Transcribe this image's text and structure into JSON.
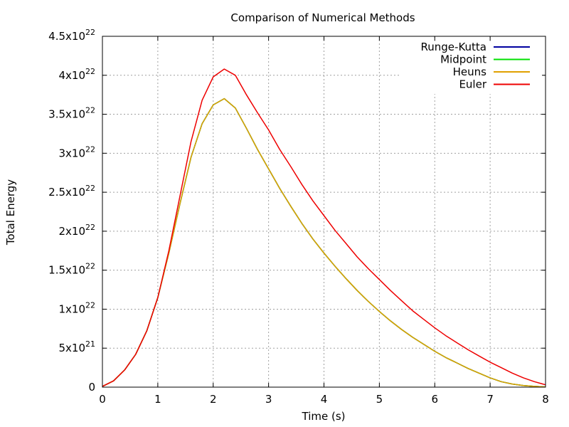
{
  "chart_data": {
    "type": "line",
    "title": "Comparison of Numerical Methods",
    "xlabel": "Time (s)",
    "ylabel": "Total Energy",
    "xlim": [
      0,
      8
    ],
    "ylim": [
      0,
      4.5e+22
    ],
    "grid": true,
    "legend_position": "top-right",
    "x_ticks": [
      {
        "value": 0,
        "label": "0"
      },
      {
        "value": 1,
        "label": "1"
      },
      {
        "value": 2,
        "label": "2"
      },
      {
        "value": 3,
        "label": "3"
      },
      {
        "value": 4,
        "label": "4"
      },
      {
        "value": 5,
        "label": "5"
      },
      {
        "value": 6,
        "label": "6"
      },
      {
        "value": 7,
        "label": "7"
      },
      {
        "value": 8,
        "label": "8"
      }
    ],
    "y_ticks": [
      {
        "value": 0,
        "mantissa": "0",
        "exp": ""
      },
      {
        "value": 5e+21,
        "mantissa": "5x10",
        "exp": "21"
      },
      {
        "value": 1e+22,
        "mantissa": "1x10",
        "exp": "22"
      },
      {
        "value": 1.5e+22,
        "mantissa": "1.5x10",
        "exp": "22"
      },
      {
        "value": 2e+22,
        "mantissa": "2x10",
        "exp": "22"
      },
      {
        "value": 2.5e+22,
        "mantissa": "2.5x10",
        "exp": "22"
      },
      {
        "value": 3e+22,
        "mantissa": "3x10",
        "exp": "22"
      },
      {
        "value": 3.5e+22,
        "mantissa": "3.5x10",
        "exp": "22"
      },
      {
        "value": 4e+22,
        "mantissa": "4x10",
        "exp": "22"
      },
      {
        "value": 4.5e+22,
        "mantissa": "4.5x10",
        "exp": "22"
      }
    ],
    "x": [
      0,
      0.2,
      0.4,
      0.6,
      0.8,
      1.0,
      1.2,
      1.4,
      1.6,
      1.8,
      2.0,
      2.2,
      2.4,
      2.6,
      2.8,
      3.0,
      3.2,
      3.4,
      3.6,
      3.8,
      4.0,
      4.2,
      4.4,
      4.6,
      4.8,
      5.0,
      5.2,
      5.4,
      5.6,
      5.8,
      6.0,
      6.2,
      6.4,
      6.6,
      6.8,
      7.0,
      7.2,
      7.4,
      7.6,
      7.8,
      8.0
    ],
    "series": [
      {
        "name": "Runge-Kutta",
        "color": "#0000a0",
        "values": [
          1e+20,
          8e+20,
          2.2e+21,
          4.2e+21,
          7.2e+21,
          1.15e+22,
          1.72e+22,
          2.35e+22,
          2.95e+22,
          3.38e+22,
          3.62e+22,
          3.7e+22,
          3.58e+22,
          3.32e+22,
          3.05e+22,
          2.8e+22,
          2.55e+22,
          2.32e+22,
          2.1e+22,
          1.9e+22,
          1.72e+22,
          1.55e+22,
          1.39e+22,
          1.24e+22,
          1.1e+22,
          9.7e+21,
          8.5e+21,
          7.4e+21,
          6.4e+21,
          5.5e+21,
          4.6e+21,
          3.8e+21,
          3.1e+21,
          2.4e+21,
          1.8e+21,
          1.2e+21,
          7e+20,
          4e+20,
          2e+20,
          1e+20,
          3e+19
        ]
      },
      {
        "name": "Midpoint",
        "color": "#00e000",
        "values": [
          1e+20,
          8e+20,
          2.2e+21,
          4.2e+21,
          7.2e+21,
          1.15e+22,
          1.72e+22,
          2.35e+22,
          2.95e+22,
          3.38e+22,
          3.62e+22,
          3.7e+22,
          3.58e+22,
          3.32e+22,
          3.05e+22,
          2.8e+22,
          2.55e+22,
          2.32e+22,
          2.1e+22,
          1.9e+22,
          1.72e+22,
          1.55e+22,
          1.39e+22,
          1.24e+22,
          1.1e+22,
          9.7e+21,
          8.5e+21,
          7.4e+21,
          6.4e+21,
          5.5e+21,
          4.6e+21,
          3.8e+21,
          3.1e+21,
          2.4e+21,
          1.8e+21,
          1.2e+21,
          7e+20,
          4e+20,
          2e+20,
          1e+20,
          3e+19
        ]
      },
      {
        "name": "Heuns",
        "color": "#e0a000",
        "values": [
          1e+20,
          8e+20,
          2.2e+21,
          4.2e+21,
          7.2e+21,
          1.15e+22,
          1.72e+22,
          2.35e+22,
          2.95e+22,
          3.38e+22,
          3.62e+22,
          3.7e+22,
          3.58e+22,
          3.32e+22,
          3.05e+22,
          2.8e+22,
          2.55e+22,
          2.32e+22,
          2.1e+22,
          1.9e+22,
          1.72e+22,
          1.55e+22,
          1.39e+22,
          1.24e+22,
          1.1e+22,
          9.7e+21,
          8.5e+21,
          7.4e+21,
          6.4e+21,
          5.5e+21,
          4.6e+21,
          3.8e+21,
          3.1e+21,
          2.4e+21,
          1.8e+21,
          1.2e+21,
          7e+20,
          4e+20,
          2e+20,
          1e+20,
          3e+19
        ]
      },
      {
        "name": "Euler",
        "color": "#ee0000",
        "values": [
          1e+20,
          8e+20,
          2.2e+21,
          4.2e+21,
          7.2e+21,
          1.15e+22,
          1.75e+22,
          2.45e+22,
          3.15e+22,
          3.68e+22,
          3.98e+22,
          4.08e+22,
          4e+22,
          3.75e+22,
          3.52e+22,
          3.3e+22,
          3.05e+22,
          2.83e+22,
          2.6e+22,
          2.39e+22,
          2.2e+22,
          2.01e+22,
          1.84e+22,
          1.67e+22,
          1.52e+22,
          1.38e+22,
          1.24e+22,
          1.11e+22,
          9.8e+21,
          8.7e+21,
          7.6e+21,
          6.6e+21,
          5.7e+21,
          4.8e+21,
          4e+21,
          3.2e+21,
          2.5e+21,
          1.8e+21,
          1.2e+21,
          7e+20,
          3e+20
        ]
      }
    ]
  }
}
